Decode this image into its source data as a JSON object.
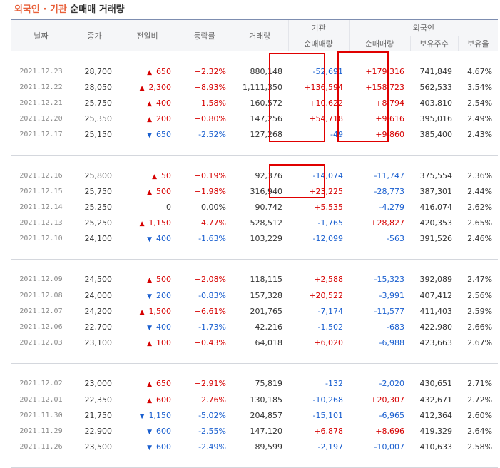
{
  "title": {
    "part1": "외국인 · 기관",
    "part2": "순매매 거래량"
  },
  "headers": {
    "date": "날짜",
    "close": "종가",
    "change": "전일비",
    "rate": "등락률",
    "volume": "거래량",
    "inst_group": "기관",
    "inst_net": "순매매량",
    "foreign_group": "외국인",
    "foreign_net": "순매매량",
    "foreign_hold": "보유주수",
    "foreign_ratio": "보유율"
  },
  "colors": {
    "up": "#d60000",
    "down": "#1a5fcf",
    "highlight": "#e00000",
    "title_accent": "#e8603a"
  },
  "groups": [
    [
      {
        "date": "2021.12.23",
        "close": "28,700",
        "dir": "up",
        "change": "650",
        "rate": "+2.32%",
        "volume": "880,148",
        "inst": "-52,691",
        "foreign": "+179,316",
        "hold": "741,849",
        "ratio": "4.67%"
      },
      {
        "date": "2021.12.22",
        "close": "28,050",
        "dir": "up",
        "change": "2,300",
        "rate": "+8.93%",
        "volume": "1,111,350",
        "inst": "+136,594",
        "foreign": "+158,723",
        "hold": "562,533",
        "ratio": "3.54%"
      },
      {
        "date": "2021.12.21",
        "close": "25,750",
        "dir": "up",
        "change": "400",
        "rate": "+1.58%",
        "volume": "160,572",
        "inst": "+10,622",
        "foreign": "+8,794",
        "hold": "403,810",
        "ratio": "2.54%"
      },
      {
        "date": "2021.12.20",
        "close": "25,350",
        "dir": "up",
        "change": "200",
        "rate": "+0.80%",
        "volume": "147,256",
        "inst": "+54,718",
        "foreign": "+9,616",
        "hold": "395,016",
        "ratio": "2.49%"
      },
      {
        "date": "2021.12.17",
        "close": "25,150",
        "dir": "down",
        "change": "650",
        "rate": "-2.52%",
        "volume": "127,268",
        "inst": "-49",
        "foreign": "+9,860",
        "hold": "385,400",
        "ratio": "2.43%"
      }
    ],
    [
      {
        "date": "2021.12.16",
        "close": "25,800",
        "dir": "up",
        "change": "50",
        "rate": "+0.19%",
        "volume": "92,376",
        "inst": "-14,074",
        "foreign": "-11,747",
        "hold": "375,554",
        "ratio": "2.36%"
      },
      {
        "date": "2021.12.15",
        "close": "25,750",
        "dir": "up",
        "change": "500",
        "rate": "+1.98%",
        "volume": "316,940",
        "inst": "+23,225",
        "foreign": "-28,773",
        "hold": "387,301",
        "ratio": "2.44%"
      },
      {
        "date": "2021.12.14",
        "close": "25,250",
        "dir": "flat",
        "change": "0",
        "rate": "0.00%",
        "volume": "90,742",
        "inst": "+5,535",
        "foreign": "-4,279",
        "hold": "416,074",
        "ratio": "2.62%"
      },
      {
        "date": "2021.12.13",
        "close": "25,250",
        "dir": "up",
        "change": "1,150",
        "rate": "+4.77%",
        "volume": "528,512",
        "inst": "-1,765",
        "foreign": "+28,827",
        "hold": "420,353",
        "ratio": "2.65%"
      },
      {
        "date": "2021.12.10",
        "close": "24,100",
        "dir": "down",
        "change": "400",
        "rate": "-1.63%",
        "volume": "103,229",
        "inst": "-12,099",
        "foreign": "-563",
        "hold": "391,526",
        "ratio": "2.46%"
      }
    ],
    [
      {
        "date": "2021.12.09",
        "close": "24,500",
        "dir": "up",
        "change": "500",
        "rate": "+2.08%",
        "volume": "118,115",
        "inst": "+2,588",
        "foreign": "-15,323",
        "hold": "392,089",
        "ratio": "2.47%"
      },
      {
        "date": "2021.12.08",
        "close": "24,000",
        "dir": "down",
        "change": "200",
        "rate": "-0.83%",
        "volume": "157,328",
        "inst": "+20,522",
        "foreign": "-3,991",
        "hold": "407,412",
        "ratio": "2.56%"
      },
      {
        "date": "2021.12.07",
        "close": "24,200",
        "dir": "up",
        "change": "1,500",
        "rate": "+6.61%",
        "volume": "201,765",
        "inst": "-7,174",
        "foreign": "-11,577",
        "hold": "411,403",
        "ratio": "2.59%"
      },
      {
        "date": "2021.12.06",
        "close": "22,700",
        "dir": "down",
        "change": "400",
        "rate": "-1.73%",
        "volume": "42,216",
        "inst": "-1,502",
        "foreign": "-683",
        "hold": "422,980",
        "ratio": "2.66%"
      },
      {
        "date": "2021.12.03",
        "close": "23,100",
        "dir": "up",
        "change": "100",
        "rate": "+0.43%",
        "volume": "64,018",
        "inst": "+6,020",
        "foreign": "-6,988",
        "hold": "423,663",
        "ratio": "2.67%"
      }
    ],
    [
      {
        "date": "2021.12.02",
        "close": "23,000",
        "dir": "up",
        "change": "650",
        "rate": "+2.91%",
        "volume": "75,819",
        "inst": "-132",
        "foreign": "-2,020",
        "hold": "430,651",
        "ratio": "2.71%"
      },
      {
        "date": "2021.12.01",
        "close": "22,350",
        "dir": "up",
        "change": "600",
        "rate": "+2.76%",
        "volume": "130,185",
        "inst": "-10,268",
        "foreign": "+20,307",
        "hold": "432,671",
        "ratio": "2.72%"
      },
      {
        "date": "2021.11.30",
        "close": "21,750",
        "dir": "down",
        "change": "1,150",
        "rate": "-5.02%",
        "volume": "204,857",
        "inst": "-15,101",
        "foreign": "-6,965",
        "hold": "412,364",
        "ratio": "2.60%"
      },
      {
        "date": "2021.11.29",
        "close": "22,900",
        "dir": "down",
        "change": "600",
        "rate": "-2.55%",
        "volume": "147,120",
        "inst": "+6,878",
        "foreign": "+8,696",
        "hold": "419,329",
        "ratio": "2.64%"
      },
      {
        "date": "2021.11.26",
        "close": "23,500",
        "dir": "down",
        "change": "600",
        "rate": "-2.49%",
        "volume": "89,599",
        "inst": "-2,197",
        "foreign": "-10,007",
        "hold": "410,633",
        "ratio": "2.58%"
      }
    ]
  ]
}
